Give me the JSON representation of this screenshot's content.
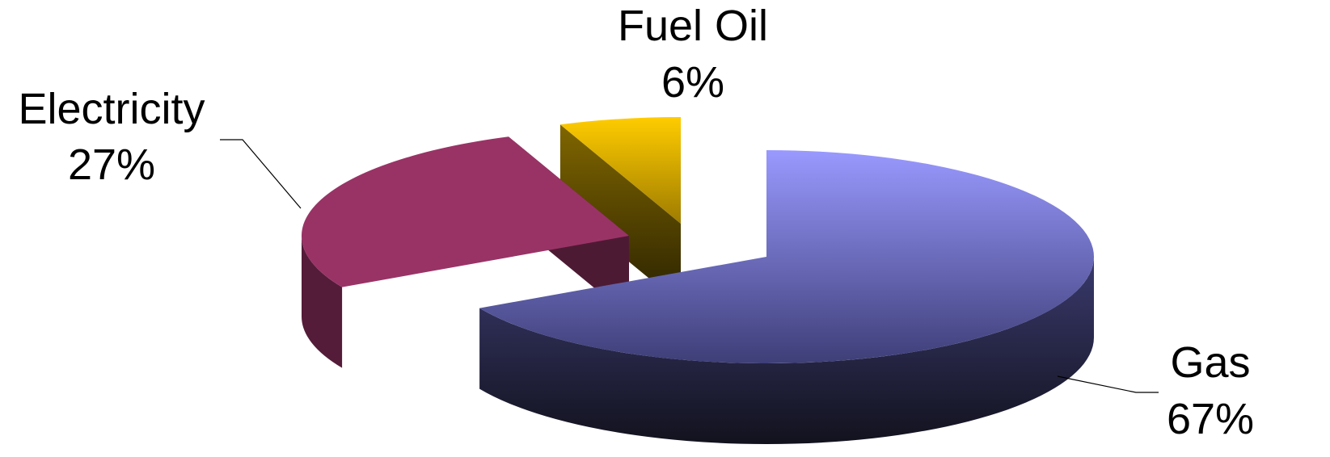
{
  "chart_data": {
    "type": "pie",
    "style": "3d-exploded",
    "title": "",
    "legend": "none",
    "slices": [
      {
        "label": "Gas",
        "value": 67,
        "value_label": "67%",
        "color": "#9999FF"
      },
      {
        "label": "Electricity",
        "value": 27,
        "value_label": "27%",
        "color": "#993366"
      },
      {
        "label": "Fuel Oil",
        "value": 6,
        "value_label": "6%",
        "color": "#FFCC00"
      }
    ]
  }
}
